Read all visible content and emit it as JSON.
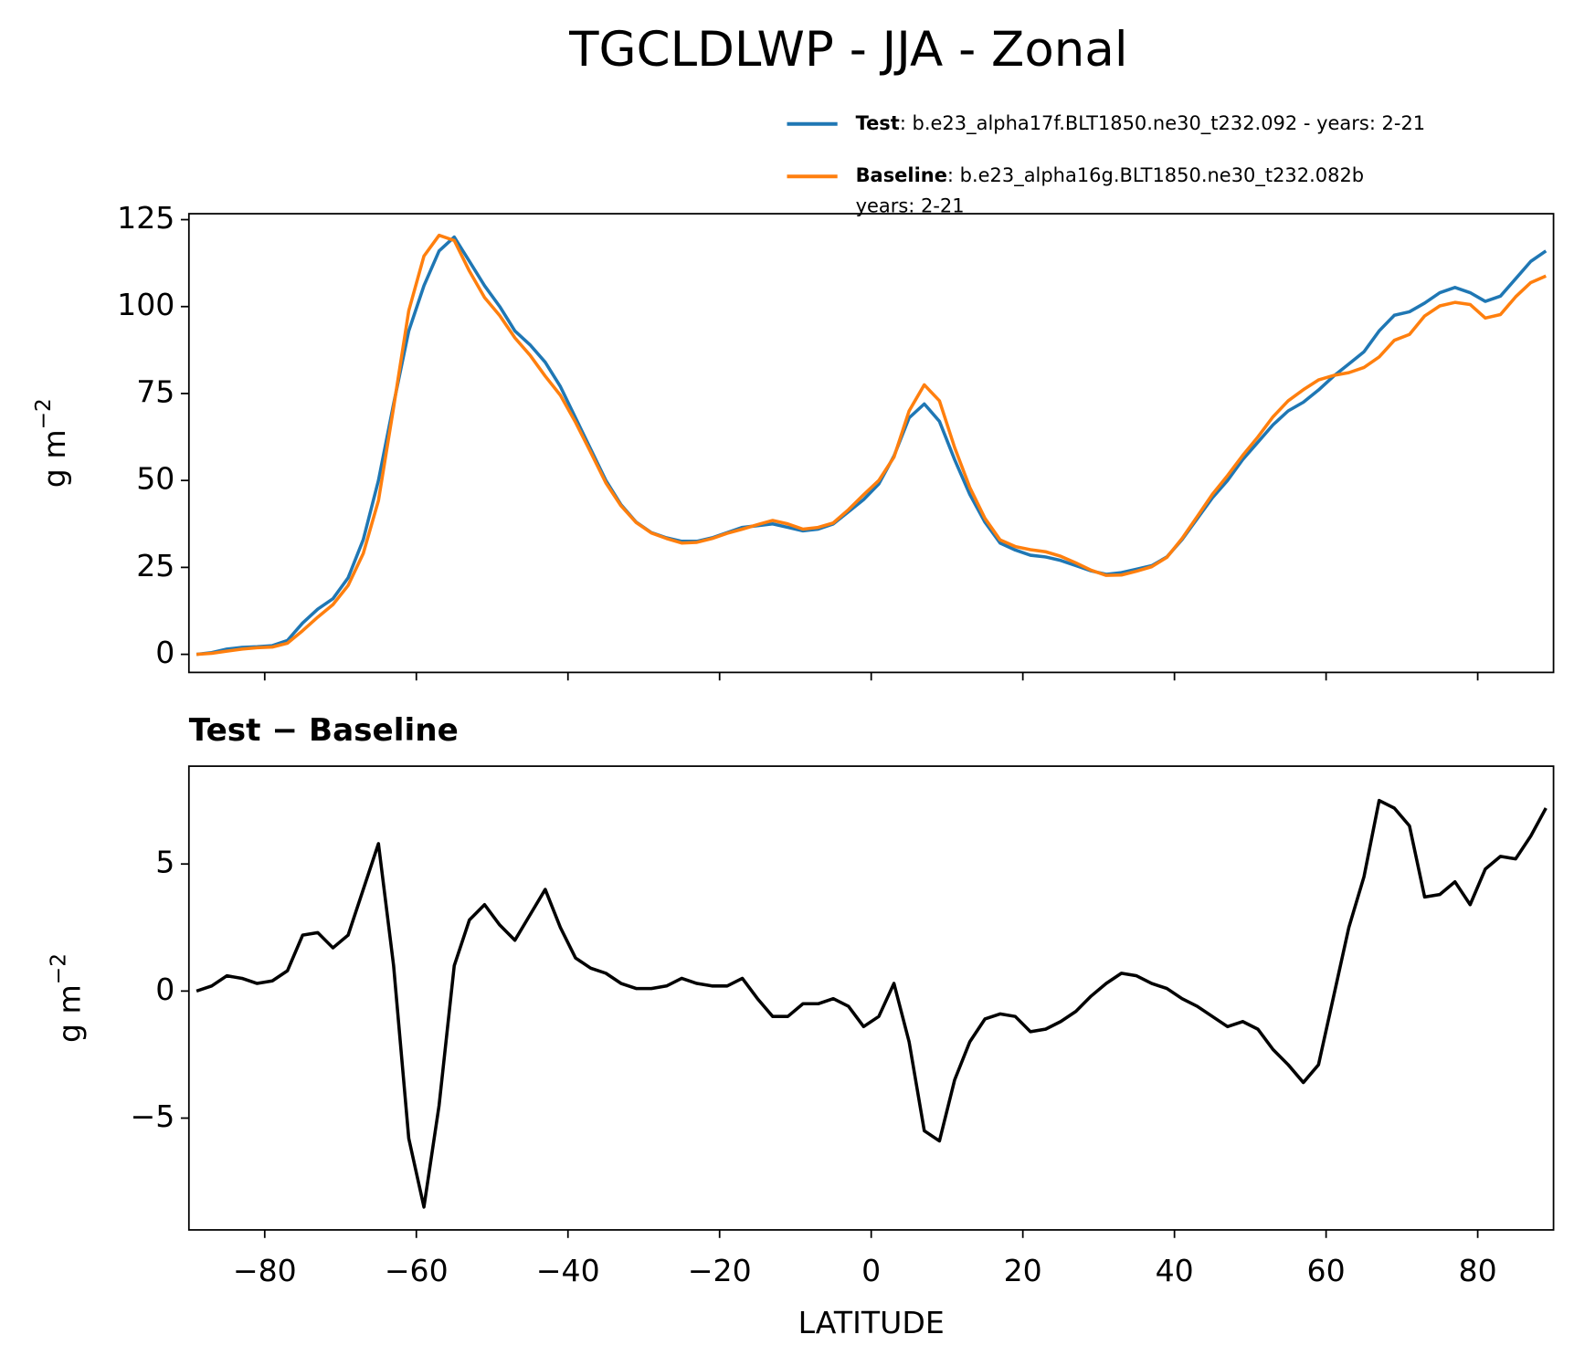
{
  "title": "TGCLDLWP - JJA - Zonal",
  "chart_data": [
    {
      "type": "line",
      "ylabel": "g m",
      "ylabel_exponent": "−2",
      "x": [
        -89,
        -87,
        -85,
        -83,
        -81,
        -79,
        -77,
        -75,
        -73,
        -71,
        -69,
        -67,
        -65,
        -63,
        -61,
        -59,
        -57,
        -55,
        -53,
        -51,
        -49,
        -47,
        -45,
        -43,
        -41,
        -39,
        -37,
        -35,
        -33,
        -31,
        -29,
        -27,
        -25,
        -23,
        -21,
        -19,
        -17,
        -15,
        -13,
        -11,
        -9,
        -7,
        -5,
        -3,
        -1,
        1,
        3,
        5,
        7,
        9,
        11,
        13,
        15,
        17,
        19,
        21,
        23,
        25,
        27,
        29,
        31,
        33,
        35,
        37,
        39,
        41,
        43,
        45,
        47,
        49,
        51,
        53,
        55,
        57,
        59,
        61,
        63,
        65,
        67,
        69,
        71,
        73,
        75,
        77,
        79,
        81,
        83,
        85,
        87,
        89
      ],
      "series": [
        {
          "name": "Test",
          "legend_text": [
            ": b.e23_alpha17f.BLT1850.ne30_t232.092 - years: 2-21"
          ],
          "color": "#1f77b4",
          "values": [
            0,
            0.5,
            1.5,
            2,
            2.2,
            2.5,
            4,
            9,
            13,
            16,
            22,
            33,
            50,
            72,
            93,
            106,
            116,
            120,
            113,
            106,
            100,
            93,
            89,
            84,
            77,
            68,
            59,
            50,
            43,
            38,
            35,
            33.5,
            32.5,
            32.5,
            33.5,
            35,
            36.5,
            37,
            37.5,
            36.5,
            35.5,
            36,
            37.5,
            41,
            44.5,
            49,
            57,
            68,
            72,
            67,
            56,
            46,
            38,
            32,
            30,
            28.5,
            28,
            27,
            25.5,
            24,
            23,
            23.5,
            24.5,
            25.5,
            28,
            33,
            39,
            45,
            50,
            56,
            61,
            66,
            70,
            72.5,
            76,
            80,
            83.5,
            87,
            93,
            97.5,
            98.5,
            101,
            104,
            105.5,
            104,
            101.5,
            103,
            108,
            113,
            116
          ]
        },
        {
          "name": "Baseline",
          "legend_text": [
            ": b.e23_alpha16g.BLT1850.ne30_t232.082b",
            "years: 2-21"
          ],
          "color": "#ff7f0e",
          "values": [
            0,
            0.3,
            0.9,
            1.5,
            1.9,
            2.1,
            3.2,
            6.8,
            10.7,
            14.3,
            19.8,
            29,
            44.2,
            71,
            98.8,
            114.5,
            120.5,
            119,
            110.2,
            102.6,
            97.4,
            91,
            86,
            80,
            74.5,
            66.7,
            58.1,
            49.3,
            42.7,
            37.9,
            34.9,
            33.3,
            32,
            32.2,
            33.3,
            34.8,
            36,
            37.3,
            38.5,
            37.5,
            36,
            36.5,
            37.8,
            41.6,
            45.9,
            50,
            56.7,
            70,
            77.5,
            72.9,
            59.5,
            48,
            39.1,
            32.9,
            31,
            30.1,
            29.5,
            28.2,
            26.3,
            24.2,
            22.7,
            22.8,
            23.9,
            25.2,
            27.9,
            33.3,
            39.6,
            46,
            51.4,
            57.2,
            62.5,
            68.3,
            72.9,
            76.1,
            78.9,
            80.2,
            81,
            82.5,
            85.5,
            90.3,
            92,
            97.3,
            100.2,
            101.2,
            100.6,
            96.7,
            97.7,
            102.8,
            106.9,
            108.8
          ]
        }
      ],
      "xlim": [
        -90,
        90
      ],
      "xticks": [
        -80,
        -60,
        -40,
        -20,
        0,
        20,
        40,
        60,
        80
      ],
      "show_xticklabels": false,
      "ylim": [
        -5.2,
        126.7
      ],
      "yticks": [
        0,
        25,
        50,
        75,
        100,
        125
      ]
    },
    {
      "type": "line",
      "title": "Test − Baseline",
      "xlabel": "LATITUDE",
      "ylabel": "g m",
      "ylabel_exponent": "−2",
      "x": [
        -89,
        -87,
        -85,
        -83,
        -81,
        -79,
        -77,
        -75,
        -73,
        -71,
        -69,
        -67,
        -65,
        -63,
        -61,
        -59,
        -57,
        -55,
        -53,
        -51,
        -49,
        -47,
        -45,
        -43,
        -41,
        -39,
        -37,
        -35,
        -33,
        -31,
        -29,
        -27,
        -25,
        -23,
        -21,
        -19,
        -17,
        -15,
        -13,
        -11,
        -9,
        -7,
        -5,
        -3,
        -1,
        1,
        3,
        5,
        7,
        9,
        11,
        13,
        15,
        17,
        19,
        21,
        23,
        25,
        27,
        29,
        31,
        33,
        35,
        37,
        39,
        41,
        43,
        45,
        47,
        49,
        51,
        53,
        55,
        57,
        59,
        61,
        63,
        65,
        67,
        69,
        71,
        73,
        75,
        77,
        79,
        81,
        83,
        85,
        87,
        89
      ],
      "color": "#000000",
      "values": [
        0,
        0.2,
        0.6,
        0.5,
        0.3,
        0.4,
        0.8,
        2.2,
        2.3,
        1.7,
        2.2,
        4,
        5.8,
        1,
        -5.8,
        -8.5,
        -4.5,
        1,
        2.8,
        3.4,
        2.6,
        2,
        3,
        4,
        2.5,
        1.3,
        0.9,
        0.7,
        0.3,
        0.1,
        0.1,
        0.2,
        0.5,
        0.3,
        0.2,
        0.2,
        0.5,
        -0.3,
        -1,
        -1,
        -0.5,
        -0.5,
        -0.3,
        -0.6,
        -1.4,
        -1,
        0.3,
        -2,
        -5.5,
        -5.9,
        -3.5,
        -2,
        -1.1,
        -0.9,
        -1,
        -1.6,
        -1.5,
        -1.2,
        -0.8,
        -0.2,
        0.3,
        0.7,
        0.6,
        0.3,
        0.1,
        -0.3,
        -0.6,
        -1,
        -1.4,
        -1.2,
        -1.5,
        -2.3,
        -2.9,
        -3.6,
        -2.9,
        -0.2,
        2.5,
        4.5,
        7.5,
        7.2,
        6.5,
        3.7,
        3.8,
        4.3,
        3.4,
        4.8,
        5.3,
        5.2,
        6.1,
        7.2
      ],
      "xlim": [
        -90,
        90
      ],
      "xticks": [
        {
          "value": -80,
          "label": "−80"
        },
        {
          "value": -60,
          "label": "−60"
        },
        {
          "value": -40,
          "label": "−40"
        },
        {
          "value": -20,
          "label": "−20"
        },
        0,
        20,
        40,
        60,
        80
      ],
      "show_xticklabels": true,
      "ylim": [
        -9.4,
        8.85
      ],
      "yticks": [
        {
          "value": -5,
          "label": "−5"
        },
        0,
        5
      ]
    }
  ]
}
